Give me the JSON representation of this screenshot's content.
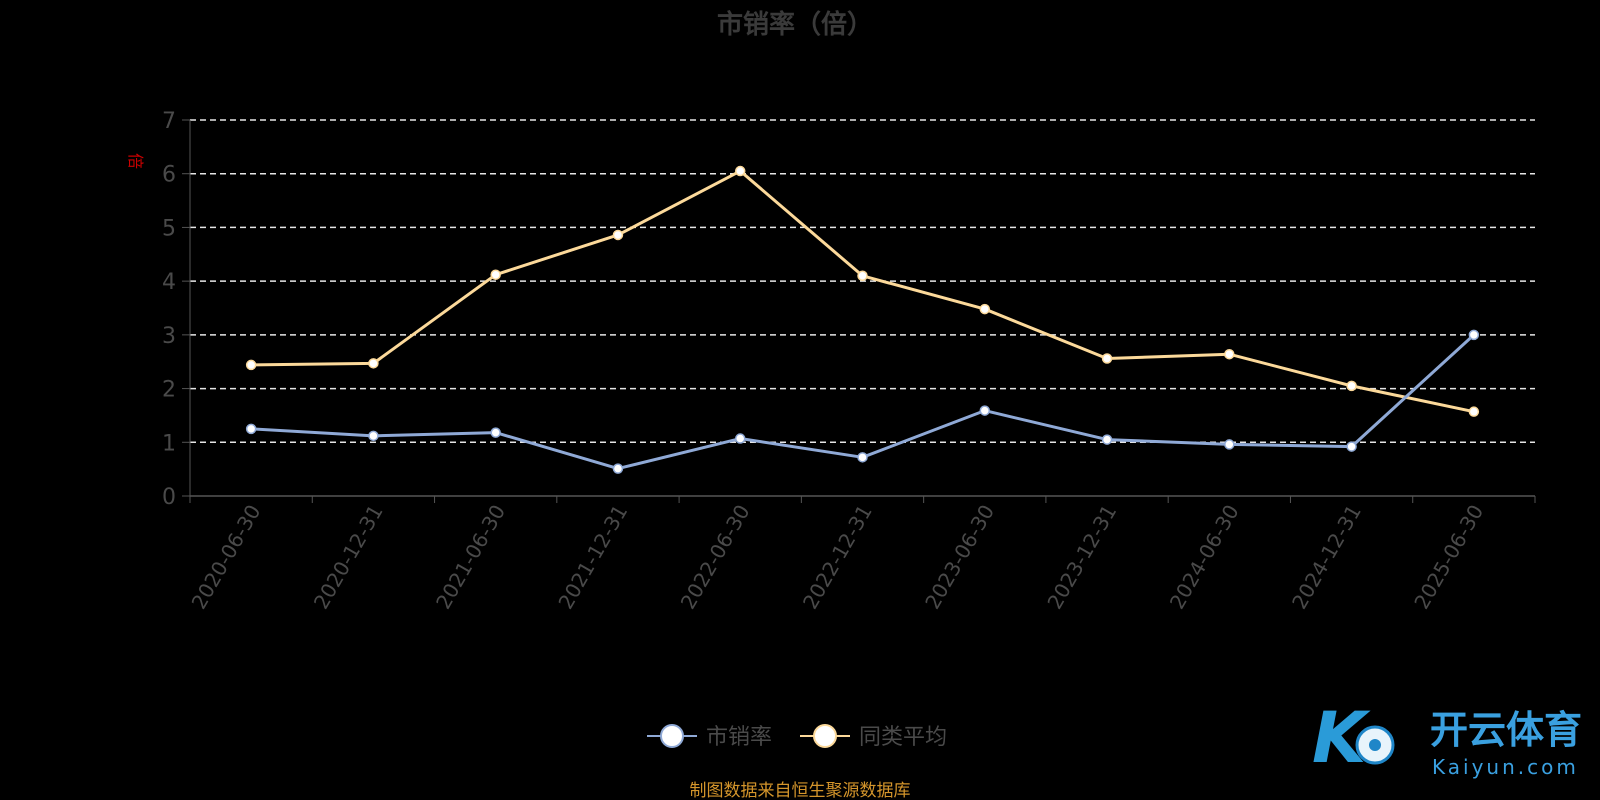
{
  "chart_data": {
    "type": "line",
    "title": "市销率（倍）",
    "ylabel": "倍",
    "xlabel": "",
    "ylim": [
      0,
      7
    ],
    "yticks": [
      "0",
      "1",
      "2",
      "3",
      "4",
      "5",
      "6",
      "7"
    ],
    "grid": true,
    "legend_position": "bottom",
    "categories": [
      "2020-06-30",
      "2020-12-31",
      "2021-06-30",
      "2021-12-31",
      "2022-06-30",
      "2022-12-31",
      "2023-06-30",
      "2023-12-31",
      "2024-06-30",
      "2024-12-31",
      "2025-06-30"
    ],
    "series": [
      {
        "name": "市销率",
        "color": "#8fa9d6",
        "values": [
          1.25,
          1.12,
          1.18,
          0.51,
          1.07,
          0.72,
          1.59,
          1.05,
          0.96,
          0.92,
          3.0
        ]
      },
      {
        "name": "同类平均",
        "color": "#fcd99a",
        "values": [
          2.44,
          2.47,
          4.12,
          4.86,
          6.05,
          4.1,
          3.48,
          2.56,
          2.64,
          2.05,
          1.57
        ]
      }
    ]
  },
  "source": "制图数据来自恒生聚源数据库",
  "logo": {
    "mark": "K",
    "cn": "开云体育",
    "en": "Kaiyun.com"
  }
}
